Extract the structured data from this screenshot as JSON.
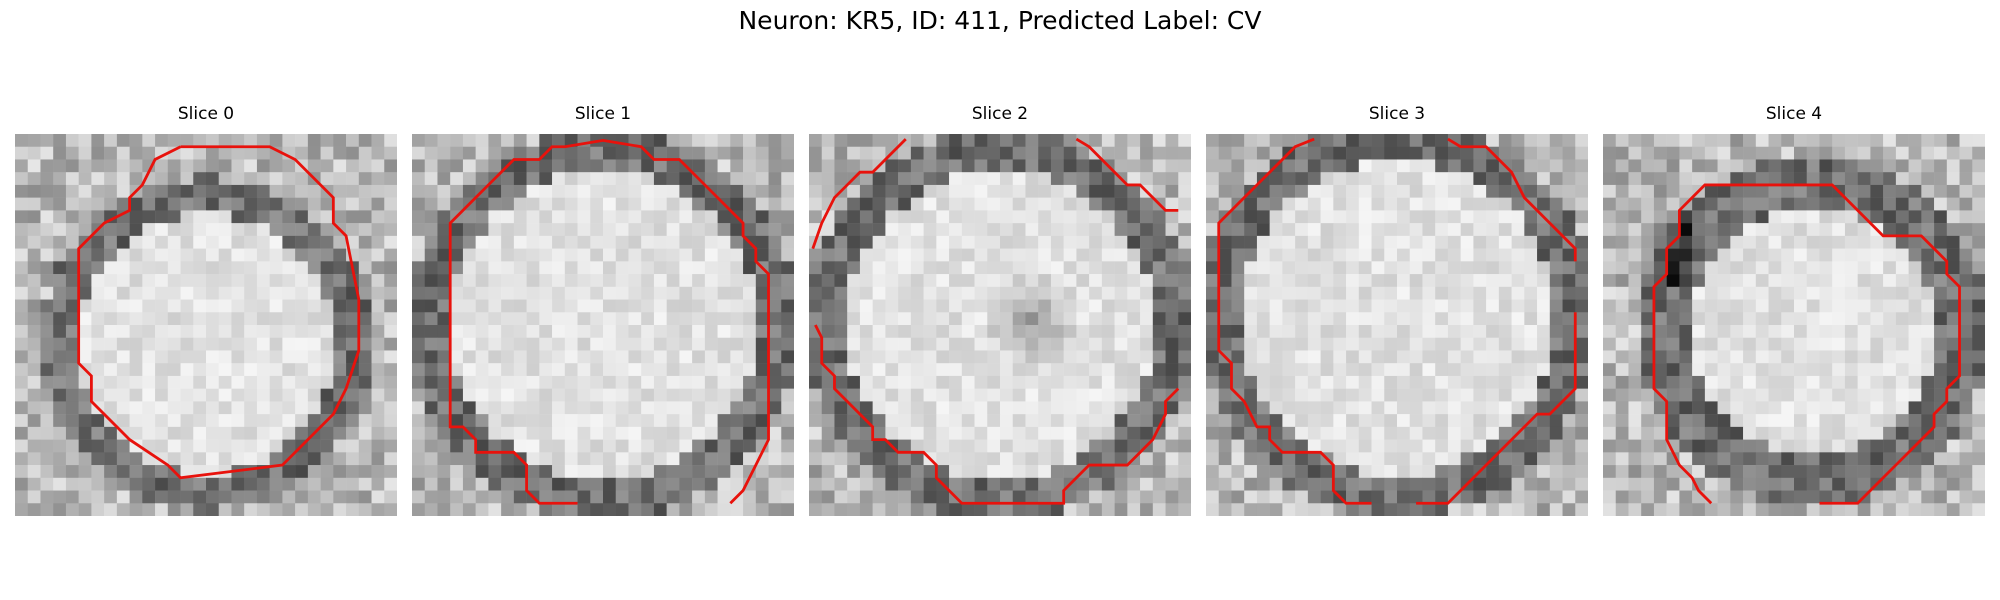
{
  "figure": {
    "title": "Neuron: KR5, ID: 411, Predicted Label: CV"
  },
  "slices": [
    {
      "title": "Slice 0"
    },
    {
      "title": "Slice 1"
    },
    {
      "title": "Slice 2"
    },
    {
      "title": "Slice 3"
    },
    {
      "title": "Slice 4"
    }
  ],
  "colors": {
    "contour": "#e8120c",
    "colormap": "grayscale"
  }
}
